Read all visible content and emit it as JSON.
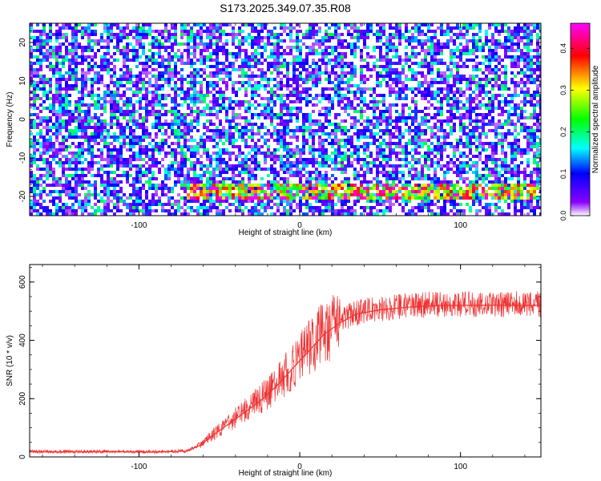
{
  "title": "S173.2025.349.07.35.R08",
  "chart_data": [
    {
      "type": "heatmap",
      "xlabel": "Height of straight line (km)",
      "ylabel": "Frequency (Hz)",
      "xlim": [
        -168,
        150
      ],
      "ylim": [
        -25,
        25
      ],
      "xticks": [
        -100,
        0,
        100
      ],
      "yticks": [
        -20,
        -10,
        0,
        10,
        20
      ],
      "colorbar": {
        "label": "Normalized spectral amplitude",
        "range": [
          0.0,
          0.46
        ],
        "ticks": [
          "0.0",
          "0.1",
          "0.2",
          "0.3",
          "0.4"
        ],
        "colormap": [
          "#ffffff",
          "#8a00ff",
          "#0000ff",
          "#00ffff",
          "#00ff00",
          "#ffff00",
          "#ff0000",
          "#ff00ff"
        ]
      },
      "features": [
        {
          "name": "",
          "freq_hz": -19,
          "x_range_km": [
            -70,
            150
          ],
          "peak_amplitude": 0.44,
          "peak_x_km": 108
        }
      ]
    },
    {
      "type": "line",
      "xlabel": "Height of straight line (km)",
      "ylabel": "SNR (10 * v/v)",
      "xlim": [
        -168,
        150
      ],
      "ylim": [
        0,
        660
      ],
      "xticks": [
        -100,
        0,
        100
      ],
      "yticks": [
        0,
        200,
        400,
        600
      ],
      "color": "#ee3333",
      "series": [
        {
          "x": [
            -168,
            -150,
            -120,
            -90,
            -70,
            -62,
            -55,
            -45,
            -35,
            -25,
            -15,
            -5,
            5,
            15,
            25,
            35,
            50,
            70,
            90,
            110,
            130,
            150
          ],
          "y": [
            18,
            17,
            18,
            17,
            20,
            40,
            70,
            110,
            150,
            190,
            240,
            300,
            360,
            420,
            460,
            490,
            505,
            515,
            520,
            520,
            520,
            520
          ]
        }
      ]
    }
  ]
}
